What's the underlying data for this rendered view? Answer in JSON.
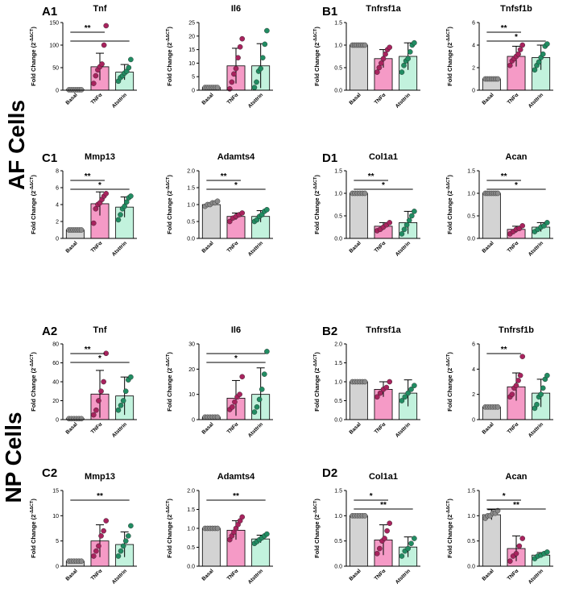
{
  "sections": {
    "af_label": "AF Cells",
    "np_label": "NP Cells"
  },
  "ylabel": "Fold Change (2",
  "ylabel_sup": "-ΔΔCT",
  "ylabel_close": ")",
  "categories": [
    "Basal",
    "TNFα",
    "Atsttrin"
  ],
  "colors": {
    "basal": "#d3d3d3",
    "tnf": "#f59ac6",
    "atsttrin": "#c2f2dd",
    "dot_basal": "#8a8a8a",
    "dot_tnf": "#a8235e",
    "dot_atsttrin": "#218c62"
  },
  "panel_labels": {
    "A1": "A1",
    "B1": "B1",
    "C1": "C1",
    "D1": "D1",
    "A2": "A2",
    "B2": "B2",
    "C2": "C2",
    "D2": "D2"
  },
  "chart_data": [
    {
      "id": "af_tnf",
      "panel": "A1",
      "title": "Tnf",
      "type": "bar",
      "ylim": [
        0,
        150
      ],
      "yticks": [
        0,
        50,
        100,
        150
      ],
      "means": [
        1,
        52,
        40
      ],
      "err": [
        0,
        30,
        17
      ],
      "points": [
        [
          1,
          1,
          1,
          1,
          1,
          1,
          1
        ],
        [
          15,
          32,
          45,
          52,
          58,
          100,
          143
        ],
        [
          20,
          28,
          32,
          38,
          42,
          50,
          68
        ]
      ],
      "sig": [
        {
          "a": 0,
          "b": 1,
          "label": "**"
        },
        {
          "a": 0,
          "b": 2,
          "label": ""
        }
      ]
    },
    {
      "id": "af_il6",
      "panel": "",
      "title": "Il6",
      "type": "bar",
      "ylim": [
        0,
        25
      ],
      "yticks": [
        0,
        5,
        10,
        15,
        20,
        25
      ],
      "means": [
        1,
        9,
        9
      ],
      "err": [
        0,
        6.5,
        8.2
      ],
      "points": [
        [
          1,
          1,
          1,
          1,
          1,
          1,
          1
        ],
        [
          0.5,
          3,
          6,
          8,
          12,
          16,
          19
        ],
        [
          1,
          3,
          7,
          8,
          12,
          17,
          22
        ]
      ],
      "sig": []
    },
    {
      "id": "af_tnfrsf1a",
      "panel": "B1",
      "title": "Tnfrsf1a",
      "type": "bar",
      "ylim": [
        0,
        1.5
      ],
      "yticks": [
        0,
        0.5,
        1.0,
        1.5
      ],
      "means": [
        1.0,
        0.7,
        0.75
      ],
      "err": [
        0,
        0.2,
        0.3
      ],
      "points": [
        [
          1,
          1,
          1,
          1,
          1,
          1,
          1
        ],
        [
          0.4,
          0.5,
          0.6,
          0.7,
          0.8,
          0.9,
          0.95
        ],
        [
          0.4,
          0.55,
          0.65,
          0.7,
          0.85,
          1.0,
          1.05
        ]
      ],
      "sig": []
    },
    {
      "id": "af_tnfrsf1b",
      "panel": "",
      "title": "Tnfsf1b",
      "type": "bar",
      "ylim": [
        0,
        6
      ],
      "yticks": [
        0,
        2,
        4,
        6
      ],
      "means": [
        1,
        3,
        2.9
      ],
      "err": [
        0,
        0.9,
        1.1
      ],
      "points": [
        [
          1,
          1,
          1,
          1,
          1,
          1,
          1
        ],
        [
          2.2,
          2.6,
          2.8,
          3.0,
          3.2,
          3.6,
          4.0
        ],
        [
          1.8,
          2.2,
          2.5,
          2.9,
          3.2,
          3.9,
          4.1
        ]
      ],
      "sig": [
        {
          "a": 0,
          "b": 1,
          "label": "**"
        },
        {
          "a": 0,
          "b": 2,
          "label": "*"
        }
      ]
    },
    {
      "id": "af_mmp13",
      "panel": "C1",
      "title": "Mmp13",
      "type": "bar",
      "ylim": [
        0,
        8
      ],
      "yticks": [
        0,
        2,
        4,
        6,
        8
      ],
      "means": [
        1,
        4.1,
        3.7
      ],
      "err": [
        0,
        1.4,
        1.2
      ],
      "points": [
        [
          1,
          1,
          1,
          1,
          1,
          1,
          1
        ],
        [
          1.8,
          3.5,
          4.0,
          4.2,
          4.6,
          5.0,
          5.3
        ],
        [
          2.2,
          2.8,
          3.5,
          3.8,
          4.3,
          4.8,
          5.0
        ]
      ],
      "sig": [
        {
          "a": 0,
          "b": 1,
          "label": "**"
        },
        {
          "a": 0,
          "b": 2,
          "label": "*"
        }
      ]
    },
    {
      "id": "af_adamts4",
      "panel": "",
      "title": "Adamts4",
      "type": "bar",
      "ylim": [
        0,
        2.0
      ],
      "yticks": [
        0,
        0.5,
        1.0,
        1.5,
        2.0
      ],
      "means": [
        1.0,
        0.65,
        0.65
      ],
      "err": [
        0.05,
        0.1,
        0.17
      ],
      "points": [
        [
          0.95,
          1.0,
          1.0,
          1.05,
          1.05,
          1.1
        ],
        [
          0.5,
          0.6,
          0.65,
          0.7,
          0.75
        ],
        [
          0.5,
          0.55,
          0.65,
          0.7,
          0.8,
          0.85
        ]
      ],
      "sig": [
        {
          "a": 0,
          "b": 1,
          "label": "**"
        },
        {
          "a": 0,
          "b": 2,
          "label": "*"
        }
      ]
    },
    {
      "id": "af_col1a1",
      "panel": "D1",
      "title": "Col1a1",
      "type": "bar",
      "ylim": [
        0,
        1.5
      ],
      "yticks": [
        0,
        0.5,
        1.0,
        1.5
      ],
      "means": [
        1.0,
        0.27,
        0.35
      ],
      "err": [
        0,
        0.08,
        0.25
      ],
      "points": [
        [
          1,
          1,
          1,
          1,
          1,
          1
        ],
        [
          0.17,
          0.2,
          0.25,
          0.3,
          0.35
        ],
        [
          0.1,
          0.2,
          0.3,
          0.4,
          0.5,
          0.6
        ]
      ],
      "sig": [
        {
          "a": 0,
          "b": 1,
          "label": "**"
        },
        {
          "a": 0,
          "b": 2,
          "label": "*"
        }
      ]
    },
    {
      "id": "af_acan",
      "panel": "",
      "title": "Acan",
      "type": "bar",
      "ylim": [
        0,
        1.5
      ],
      "yticks": [
        0,
        0.5,
        1.0,
        1.5
      ],
      "means": [
        1.0,
        0.2,
        0.25
      ],
      "err": [
        0,
        0.07,
        0.1
      ],
      "points": [
        [
          1,
          1,
          1,
          1,
          1,
          1,
          1
        ],
        [
          0.1,
          0.15,
          0.2,
          0.22,
          0.28
        ],
        [
          0.15,
          0.2,
          0.25,
          0.28,
          0.35
        ]
      ],
      "sig": [
        {
          "a": 0,
          "b": 1,
          "label": "**"
        },
        {
          "a": 0,
          "b": 2,
          "label": "*"
        }
      ]
    },
    {
      "id": "np_tnf",
      "panel": "A2",
      "title": "Tnf",
      "type": "bar",
      "ylim": [
        0,
        80
      ],
      "yticks": [
        0,
        20,
        40,
        60,
        80
      ],
      "means": [
        1,
        27,
        25
      ],
      "err": [
        0,
        25,
        20
      ],
      "points": [
        [
          1,
          1,
          1,
          1,
          1,
          1
        ],
        [
          5,
          10,
          20,
          30,
          40,
          70
        ],
        [
          10,
          15,
          20,
          30,
          42,
          45
        ]
      ],
      "sig": [
        {
          "a": 0,
          "b": 1,
          "label": "**"
        },
        {
          "a": 0,
          "b": 2,
          "label": "*"
        }
      ]
    },
    {
      "id": "np_il6",
      "panel": "",
      "title": "Il6",
      "type": "bar",
      "ylim": [
        0,
        30
      ],
      "yticks": [
        0,
        10,
        20,
        30
      ],
      "means": [
        1,
        8.5,
        10
      ],
      "err": [
        0,
        7,
        10.5
      ],
      "points": [
        [
          1,
          1,
          1,
          1,
          1,
          1
        ],
        [
          4,
          5,
          7,
          9,
          10,
          17
        ],
        [
          3,
          5,
          8,
          12,
          18,
          27
        ]
      ],
      "sig": [
        {
          "a": 0,
          "b": 2,
          "label": ""
        },
        {
          "a": 0,
          "b": 2,
          "label": "*"
        }
      ]
    },
    {
      "id": "np_tnfrsf1a",
      "panel": "B2",
      "title": "Tnfrsf1a",
      "type": "bar",
      "ylim": [
        0,
        2.0
      ],
      "yticks": [
        0,
        0.5,
        1.0,
        1.5,
        2.0
      ],
      "means": [
        1.0,
        0.8,
        0.7
      ],
      "err": [
        0,
        0.2,
        0.35
      ],
      "points": [
        [
          1,
          1,
          1,
          1,
          1,
          1
        ],
        [
          0.6,
          0.7,
          0.8,
          0.85,
          1.0
        ],
        [
          0.5,
          0.6,
          0.7,
          0.8,
          0.9
        ]
      ],
      "sig": []
    },
    {
      "id": "np_tnfrsf1b",
      "panel": "",
      "title": "Tnfrsf1b",
      "type": "bar",
      "ylim": [
        0,
        6
      ],
      "yticks": [
        0,
        2,
        4,
        6
      ],
      "means": [
        1,
        2.6,
        2.1
      ],
      "err": [
        0.1,
        1.1,
        1.1
      ],
      "points": [
        [
          1,
          1,
          1,
          1,
          1,
          1
        ],
        [
          1.8,
          2.0,
          2.5,
          2.7,
          3.1,
          3.5,
          5.0
        ],
        [
          0.9,
          1.2,
          1.8,
          2.0,
          2.5,
          3.2,
          3.5
        ]
      ],
      "sig": [
        {
          "a": 0,
          "b": 1,
          "label": "**"
        }
      ]
    },
    {
      "id": "np_mmp13",
      "panel": "C2",
      "title": "Mmp13",
      "type": "bar",
      "ylim": [
        0,
        15
      ],
      "yticks": [
        0,
        5,
        10,
        15
      ],
      "means": [
        1,
        5,
        4.3
      ],
      "err": [
        0,
        3.2,
        2.5
      ],
      "points": [
        [
          1,
          1,
          1,
          1,
          1,
          1
        ],
        [
          2,
          3,
          4,
          6,
          7,
          9
        ],
        [
          2,
          3,
          4,
          5,
          6,
          8
        ]
      ],
      "sig": [
        {
          "a": 0,
          "b": 2,
          "label": "**"
        }
      ]
    },
    {
      "id": "np_adamts4",
      "panel": "",
      "title": "Adamts4",
      "type": "bar",
      "ylim": [
        0,
        2.0
      ],
      "yticks": [
        0,
        0.5,
        1.0,
        1.5,
        2.0
      ],
      "means": [
        1.0,
        0.95,
        0.72
      ],
      "err": [
        0.05,
        0.25,
        0.1
      ],
      "points": [
        [
          1,
          1,
          1,
          1,
          1,
          1
        ],
        [
          0.7,
          0.8,
          0.9,
          1.0,
          1.1,
          1.2,
          1.3
        ],
        [
          0.6,
          0.65,
          0.7,
          0.75,
          0.8,
          0.85
        ]
      ],
      "sig": [
        {
          "a": 0,
          "b": 2,
          "label": "**"
        }
      ]
    },
    {
      "id": "np_col1a1",
      "panel": "D2",
      "title": "Col1a1",
      "type": "bar",
      "ylim": [
        0,
        1.5
      ],
      "yticks": [
        0,
        0.5,
        1.0,
        1.5
      ],
      "means": [
        1.0,
        0.52,
        0.38
      ],
      "err": [
        0,
        0.3,
        0.2
      ],
      "points": [
        [
          1,
          1,
          1,
          1,
          1,
          1
        ],
        [
          0.25,
          0.35,
          0.5,
          0.55,
          0.7,
          0.85
        ],
        [
          0.2,
          0.3,
          0.35,
          0.45,
          0.55
        ]
      ],
      "sig": [
        {
          "a": 0,
          "b": 1,
          "label": "*"
        },
        {
          "a": 0,
          "b": 2,
          "label": "**"
        }
      ]
    },
    {
      "id": "np_acan",
      "panel": "",
      "title": "Acan",
      "type": "bar",
      "ylim": [
        0,
        1.5
      ],
      "yticks": [
        0,
        0.5,
        1.0,
        1.5
      ],
      "means": [
        1.02,
        0.35,
        0.22
      ],
      "err": [
        0.1,
        0.25,
        0.05
      ],
      "points": [
        [
          0.95,
          1.0,
          1.0,
          1.05,
          1.05,
          1.1
        ],
        [
          0.1,
          0.2,
          0.25,
          0.4,
          0.55
        ],
        [
          0.15,
          0.2,
          0.22,
          0.25,
          0.28
        ]
      ],
      "sig": [
        {
          "a": 0,
          "b": 1,
          "label": "*"
        },
        {
          "a": 0,
          "b": 2,
          "label": "**"
        }
      ]
    }
  ]
}
